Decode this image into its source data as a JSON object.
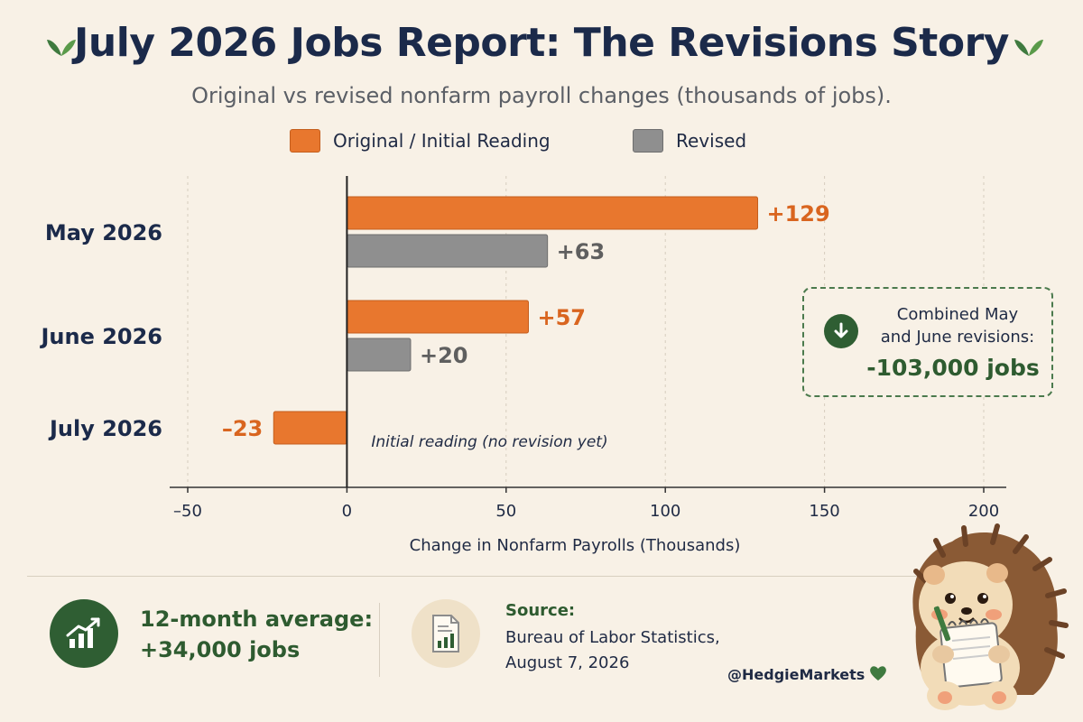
{
  "header": {
    "title": "July 2026 Jobs Report: The Revisions Story",
    "subtitle": "Original vs revised nonfarm payroll changes (thousands of jobs)."
  },
  "legend": {
    "original": "Original / Initial Reading",
    "revised": "Revised"
  },
  "colors": {
    "original": "#e8772e",
    "revised": "#8f8f8f",
    "original_label": "#d9651f",
    "revised_label": "#5f5f5f",
    "accent_green": "#2f5e33"
  },
  "chart_data": {
    "type": "bar",
    "orientation": "horizontal",
    "categories": [
      "May 2026",
      "June 2026",
      "July 2026"
    ],
    "series": [
      {
        "name": "Original / Initial Reading",
        "values": [
          129,
          57,
          -23
        ],
        "labels": [
          "+129",
          "+57",
          "–23"
        ]
      },
      {
        "name": "Revised",
        "values": [
          63,
          20,
          null
        ],
        "labels": [
          "+63",
          "+20",
          ""
        ]
      }
    ],
    "xlabel": "Change in Nonfarm Payrolls (Thousands)",
    "xlim": [
      -50,
      200
    ],
    "xticks": [
      -50,
      0,
      50,
      100,
      150,
      200
    ],
    "xtick_labels": [
      "–50",
      "0",
      "50",
      "100",
      "150",
      "200"
    ],
    "grid": "vertical dotted",
    "annotations": [
      "Initial reading (no revision yet)"
    ]
  },
  "callout": {
    "text_line1": "Combined May",
    "text_line2": "and June revisions:",
    "value": "-103,000 jobs",
    "icon": "arrow-down-icon"
  },
  "footer": {
    "avg_label": "12-month average:",
    "avg_value": "+34,000 jobs",
    "source_label": "Source:",
    "source_line1": "Bureau of Labor Statistics,",
    "source_line2": "August 7, 2026",
    "handle": "@HedgieMarkets"
  }
}
